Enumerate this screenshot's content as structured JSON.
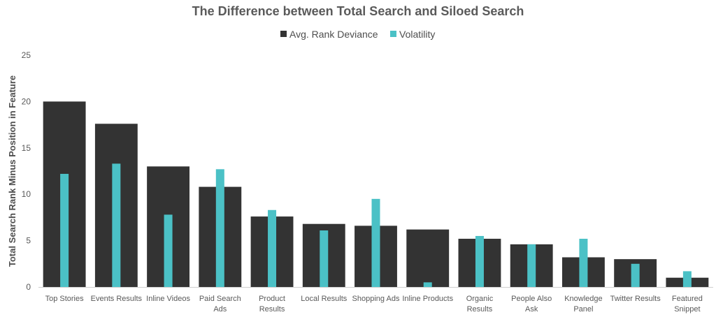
{
  "chart_data": {
    "type": "bar",
    "title": "The Difference between Total Search and Siloed Search",
    "ylabel": "Total Search Rank Minus Position in Feature",
    "xlabel": "",
    "ylim": [
      0,
      25
    ],
    "yticks": [
      0,
      5,
      10,
      15,
      20,
      25
    ],
    "grid": false,
    "legend_position": "top-center",
    "categories": [
      [
        "Top Stories"
      ],
      [
        "Events Results"
      ],
      [
        "Inline Videos"
      ],
      [
        "Paid Search",
        "Ads"
      ],
      [
        "Product",
        "Results"
      ],
      [
        "Local Results"
      ],
      [
        "Shopping Ads"
      ],
      [
        "Inline Products"
      ],
      [
        "Organic",
        "Results"
      ],
      [
        "People Also",
        "Ask"
      ],
      [
        "Knowledge",
        "Panel"
      ],
      [
        "Twitter Results"
      ],
      [
        "Featured",
        "Snippet"
      ]
    ],
    "series": [
      {
        "name": "Avg. Rank Deviance",
        "color": "#333333",
        "values": [
          20.0,
          17.6,
          13.0,
          10.8,
          7.6,
          6.8,
          6.6,
          6.2,
          5.2,
          4.6,
          3.2,
          3.0,
          1.0
        ]
      },
      {
        "name": "Volatility",
        "color": "#4bc1c6",
        "values": [
          12.2,
          13.3,
          7.8,
          12.7,
          8.3,
          6.1,
          9.5,
          0.5,
          5.5,
          4.6,
          5.2,
          2.5,
          1.7
        ]
      }
    ]
  }
}
